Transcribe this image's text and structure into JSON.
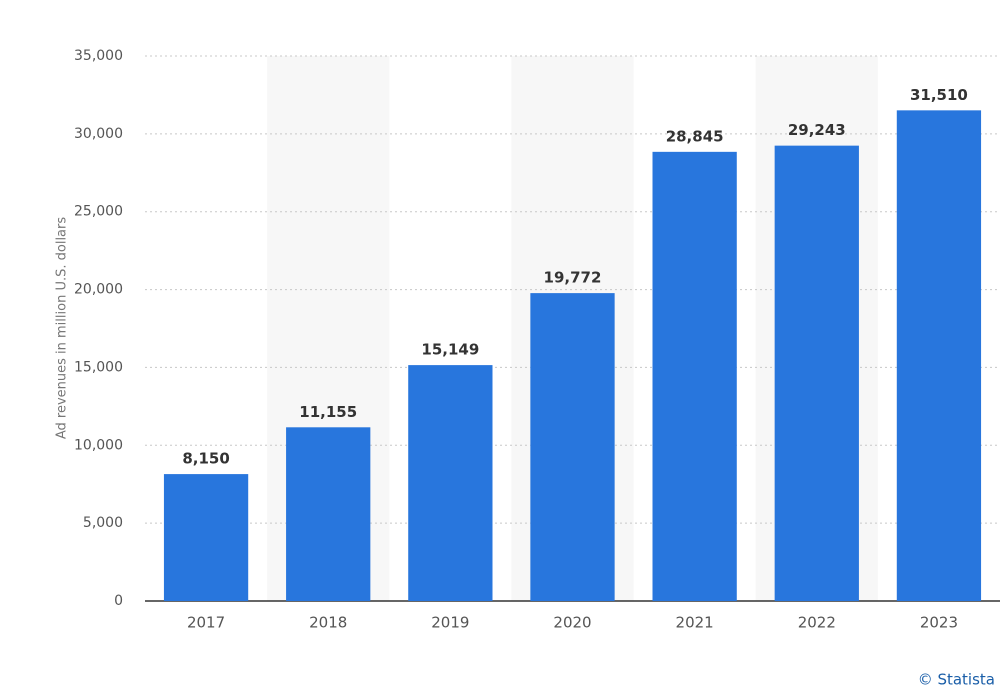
{
  "chart_data": {
    "type": "bar",
    "y_axis_label": "Ad revenues in million U.S. dollars",
    "categories": [
      "2017",
      "2018",
      "2019",
      "2020",
      "2021",
      "2022",
      "2023"
    ],
    "values": [
      8150,
      11155,
      15149,
      19772,
      28845,
      29243,
      31510
    ],
    "value_labels": [
      "8,150",
      "11,155",
      "15,149",
      "19,772",
      "28,845",
      "29,243",
      "31,510"
    ],
    "color": "#2876dd",
    "ylim": [
      0,
      35000
    ],
    "yticks": [
      0,
      {
        "value": 5000,
        "label": "5,000"
      },
      {
        "value": 10000,
        "label": "10,000"
      },
      {
        "value": 15000,
        "label": "15,000"
      },
      {
        "value": 20000,
        "label": "20,000"
      },
      {
        "value": 25000,
        "label": "25,000"
      },
      {
        "value": 30000,
        "label": "30,000"
      },
      {
        "value": 35000,
        "label": "35,000"
      }
    ],
    "grid": true,
    "credit": "© Statista"
  }
}
